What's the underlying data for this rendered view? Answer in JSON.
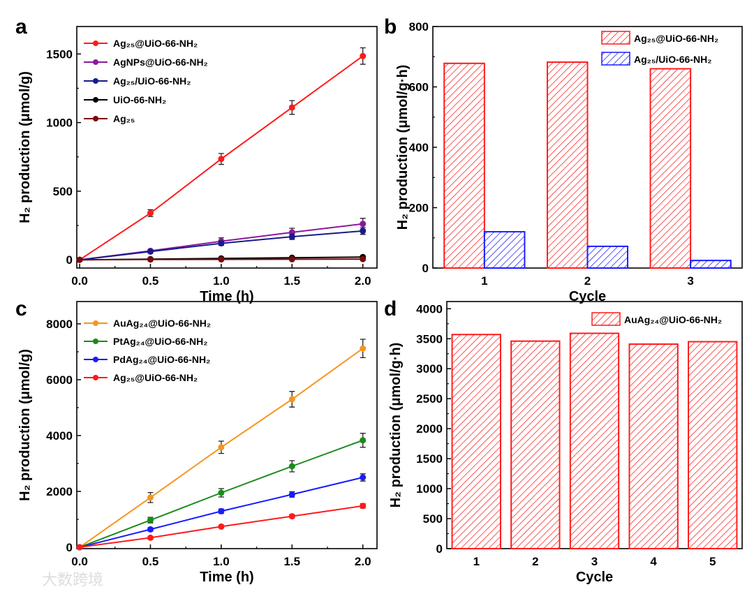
{
  "chart_data": [
    {
      "panel": "a",
      "type": "line",
      "xlabel": "Time (h)",
      "ylabel": "H₂ production (μmol/g)",
      "xlim": [
        -0.02,
        2.1
      ],
      "ylim": [
        -60,
        1700
      ],
      "xticks": [
        "0.0",
        "0.5",
        "1.0",
        "1.5",
        "2.0"
      ],
      "xtick_values": [
        0,
        0.5,
        1,
        1.5,
        2
      ],
      "yticks": [
        "0",
        "500",
        "1000",
        "1500"
      ],
      "ytick_values": [
        0,
        500,
        1000,
        1500
      ],
      "legend_position": "top-left",
      "x": [
        0,
        0.5,
        1,
        1.5,
        2
      ],
      "series": [
        {
          "name": "Ag₂₅@UiO-66-NH₂",
          "color": "#ff1a1a",
          "values": [
            0,
            340,
            735,
            1110,
            1485
          ],
          "err": [
            0,
            25,
            40,
            50,
            60
          ]
        },
        {
          "name": "AgNPs@UiO-66-NH₂",
          "color": "#8b1a9b",
          "values": [
            0,
            65,
            135,
            200,
            262
          ],
          "err": [
            0,
            10,
            25,
            30,
            40
          ]
        },
        {
          "name": "Ag₂₅/UiO-66-NH₂",
          "color": "#1a1a8b",
          "values": [
            0,
            60,
            120,
            168,
            210
          ],
          "err": [
            0,
            10,
            15,
            20,
            25
          ]
        },
        {
          "name": "UiO-66-NH₂",
          "color": "#000000",
          "values": [
            0,
            5,
            10,
            15,
            20
          ],
          "err": [
            0,
            3,
            3,
            3,
            3
          ]
        },
        {
          "name": "Ag₂₅",
          "color": "#7a0a0a",
          "values": [
            0,
            2,
            3,
            4,
            5
          ],
          "err": [
            0,
            2,
            2,
            2,
            2
          ]
        }
      ]
    },
    {
      "panel": "b",
      "type": "bar",
      "xlabel": "Cycle",
      "ylabel": "H₂ production (μmol/g·h)",
      "ylim": [
        0,
        800
      ],
      "categories": [
        "1",
        "2",
        "3"
      ],
      "yticks": [
        "0",
        "200",
        "400",
        "600",
        "800"
      ],
      "ytick_values": [
        0,
        200,
        400,
        600,
        800
      ],
      "legend_position": "top-right",
      "series": [
        {
          "name": "Ag₂₅@UiO-66-NH₂",
          "color": "#ff1a1a",
          "values": [
            678,
            682,
            660
          ]
        },
        {
          "name": "Ag₂₅/UiO-66-NH₂",
          "color": "#1a1aff",
          "values": [
            120,
            72,
            25
          ]
        }
      ]
    },
    {
      "panel": "c",
      "type": "line",
      "xlabel": "Time (h)",
      "ylabel": "H₂ production (μmol/g)",
      "xlim": [
        -0.02,
        2.1
      ],
      "ylim": [
        -50,
        8800
      ],
      "xticks": [
        "0.0",
        "0.5",
        "1.0",
        "1.5",
        "2.0"
      ],
      "xtick_values": [
        0,
        0.5,
        1,
        1.5,
        2
      ],
      "yticks": [
        "0",
        "2000",
        "4000",
        "6000",
        "8000"
      ],
      "ytick_values": [
        0,
        2000,
        4000,
        6000,
        8000
      ],
      "legend_position": "top-left",
      "x": [
        0,
        0.5,
        1,
        1.5,
        2
      ],
      "series": [
        {
          "name": "AuAg₂₄@UiO-66-NH₂",
          "color": "#f5961e",
          "values": [
            0,
            1780,
            3580,
            5300,
            7120
          ],
          "err": [
            0,
            180,
            220,
            280,
            330
          ]
        },
        {
          "name": "PtAg₂₄@UiO-66-NH₂",
          "color": "#1a8b1a",
          "values": [
            0,
            970,
            1950,
            2900,
            3830
          ],
          "err": [
            0,
            100,
            150,
            200,
            250
          ]
        },
        {
          "name": "PdAg₂₄@UiO-66-NH₂",
          "color": "#1a1aff",
          "values": [
            0,
            640,
            1290,
            1890,
            2500
          ],
          "err": [
            0,
            60,
            80,
            100,
            130
          ]
        },
        {
          "name": "Ag₂₅@UiO-66-NH₂",
          "color": "#ff1a1a",
          "values": [
            0,
            340,
            740,
            1110,
            1480
          ],
          "err": [
            0,
            40,
            50,
            60,
            80
          ]
        }
      ]
    },
    {
      "panel": "d",
      "type": "bar",
      "xlabel": "Cycle",
      "ylabel": "H₂ production (μmol/g·h)",
      "ylim": [
        0,
        4120
      ],
      "categories": [
        "1",
        "2",
        "3",
        "4",
        "5"
      ],
      "yticks": [
        "0",
        "500",
        "1000",
        "1500",
        "2000",
        "2500",
        "3000",
        "3500",
        "4000"
      ],
      "ytick_values": [
        0,
        500,
        1000,
        1500,
        2000,
        2500,
        3000,
        3500,
        4000
      ],
      "legend_position": "top-right",
      "series": [
        {
          "name": "AuAg₂₄@UiO-66-NH₂",
          "color": "#ff1a1a",
          "values": [
            3570,
            3460,
            3590,
            3410,
            3450
          ]
        }
      ]
    }
  ],
  "watermark": "大数跨境"
}
